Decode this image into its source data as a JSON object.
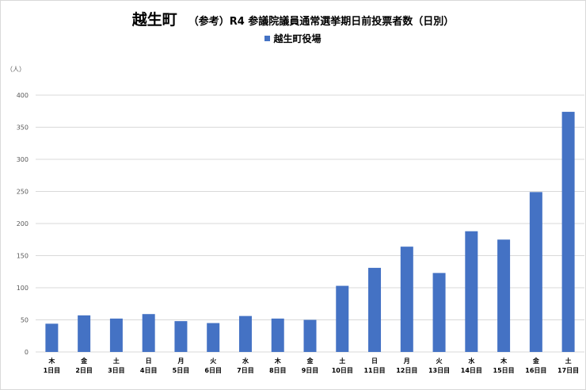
{
  "title": {
    "main": "越生町",
    "sub": "（参考）R4 参議院議員通常選挙期日前投票者数（日別）"
  },
  "unit_label": "（人）",
  "colors": {
    "bar": "#4472c4",
    "grid": "#d9d9d9",
    "axis_text": "#595959"
  },
  "chart_data": {
    "type": "bar",
    "categories": [
      {
        "weekday": "木",
        "day": "1日目"
      },
      {
        "weekday": "金",
        "day": "2日目"
      },
      {
        "weekday": "土",
        "day": "3日目"
      },
      {
        "weekday": "日",
        "day": "4日目"
      },
      {
        "weekday": "月",
        "day": "5日目"
      },
      {
        "weekday": "火",
        "day": "6日目"
      },
      {
        "weekday": "水",
        "day": "7日目"
      },
      {
        "weekday": "木",
        "day": "8日目"
      },
      {
        "weekday": "金",
        "day": "9日目"
      },
      {
        "weekday": "土",
        "day": "10日目"
      },
      {
        "weekday": "日",
        "day": "11日目"
      },
      {
        "weekday": "月",
        "day": "12日目"
      },
      {
        "weekday": "火",
        "day": "13日目"
      },
      {
        "weekday": "水",
        "day": "14日目"
      },
      {
        "weekday": "木",
        "day": "15日目"
      },
      {
        "weekday": "金",
        "day": "16日目"
      },
      {
        "weekday": "土",
        "day": "17日目"
      }
    ],
    "series": [
      {
        "name": "越生町役場",
        "values": [
          44,
          57,
          52,
          59,
          48,
          45,
          56,
          52,
          50,
          103,
          131,
          164,
          123,
          188,
          175,
          249,
          374
        ]
      }
    ],
    "ylim": [
      0,
      400
    ],
    "yticks": [
      0,
      50,
      100,
      150,
      200,
      250,
      300,
      350,
      400
    ],
    "grid": true,
    "legend_position": "top-center"
  }
}
